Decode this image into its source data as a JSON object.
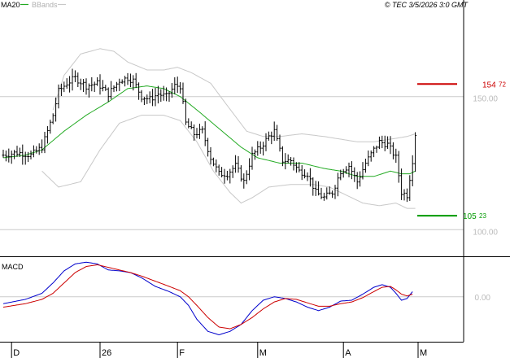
{
  "header": {
    "ma_label": "MA20",
    "bb_label": "BBands",
    "copyright": "© TEC 3/5/2026 3:0 GMT"
  },
  "colors": {
    "price": "#000000",
    "ma": "#22aa22",
    "bands": "#c8c8c8",
    "resistance": "#cc0000",
    "support": "#009900",
    "macd": "#0000cc",
    "signal": "#cc0000",
    "grid": "#cccccc",
    "frame": "#000000",
    "axis_text": "#bbbbbb"
  },
  "chart_data": [
    {
      "type": "ohlc",
      "yscale": "linear",
      "ylim": [
        90,
        182
      ],
      "x_index_range": [
        0,
        170
      ],
      "y_ticks": [
        {
          "value": 150,
          "label": "150.00"
        },
        {
          "value": 100,
          "label": "100.00"
        }
      ],
      "x_ticks": [
        {
          "i": 3,
          "label": "D"
        },
        {
          "i": 35,
          "label": "26"
        },
        {
          "i": 63,
          "label": "F"
        },
        {
          "i": 92,
          "label": "M"
        },
        {
          "i": 123,
          "label": "A"
        },
        {
          "i": 150,
          "label": "M"
        }
      ],
      "levels": [
        {
          "name": "resistance",
          "value": 154.72,
          "label_main": "154",
          "label_frac": "72"
        },
        {
          "name": "support",
          "value": 105.23,
          "label_main": "105",
          "label_frac": "23"
        }
      ],
      "close_anchors": [
        [
          0,
          128
        ],
        [
          5,
          129
        ],
        [
          10,
          128
        ],
        [
          14,
          131
        ],
        [
          18,
          143
        ],
        [
          20,
          152
        ],
        [
          23,
          155
        ],
        [
          26,
          157
        ],
        [
          30,
          154
        ],
        [
          34,
          155
        ],
        [
          38,
          151
        ],
        [
          42,
          156
        ],
        [
          45,
          157
        ],
        [
          47,
          156
        ],
        [
          50,
          150
        ],
        [
          53,
          149
        ],
        [
          56,
          151
        ],
        [
          59,
          150
        ],
        [
          62,
          154
        ],
        [
          64,
          154
        ],
        [
          66,
          140
        ],
        [
          69,
          136
        ],
        [
          72,
          137
        ],
        [
          75,
          127
        ],
        [
          78,
          121
        ],
        [
          81,
          121
        ],
        [
          84,
          124
        ],
        [
          87,
          118
        ],
        [
          90,
          128
        ],
        [
          93,
          131
        ],
        [
          96,
          135
        ],
        [
          98,
          137
        ],
        [
          101,
          126
        ],
        [
          104,
          126
        ],
        [
          107,
          122
        ],
        [
          110,
          121
        ],
        [
          113,
          114
        ],
        [
          116,
          112
        ],
        [
          119,
          114
        ],
        [
          122,
          122
        ],
        [
          125,
          124
        ],
        [
          128,
          118
        ],
        [
          131,
          125
        ],
        [
          134,
          130
        ],
        [
          136,
          133
        ],
        [
          139,
          132
        ],
        [
          142,
          127
        ],
        [
          144,
          114
        ],
        [
          146,
          113
        ],
        [
          148,
          126
        ],
        [
          149,
          136
        ]
      ],
      "ma20_anchors": [
        [
          0,
          127
        ],
        [
          8,
          128
        ],
        [
          14,
          130
        ],
        [
          22,
          137
        ],
        [
          30,
          143
        ],
        [
          38,
          148
        ],
        [
          45,
          153
        ],
        [
          52,
          154
        ],
        [
          58,
          153
        ],
        [
          64,
          150
        ],
        [
          70,
          145
        ],
        [
          78,
          138
        ],
        [
          86,
          131
        ],
        [
          92,
          127
        ],
        [
          100,
          125
        ],
        [
          108,
          125
        ],
        [
          116,
          123
        ],
        [
          122,
          122
        ],
        [
          128,
          120
        ],
        [
          134,
          120
        ],
        [
          140,
          122
        ],
        [
          144,
          121
        ],
        [
          147,
          121
        ],
        [
          149,
          122
        ]
      ],
      "upper_band_anchors": [
        [
          18,
          145
        ],
        [
          22,
          158
        ],
        [
          28,
          166
        ],
        [
          35,
          168
        ],
        [
          40,
          167
        ],
        [
          45,
          163
        ],
        [
          52,
          160
        ],
        [
          58,
          160
        ],
        [
          63,
          161
        ],
        [
          68,
          159
        ],
        [
          75,
          155
        ],
        [
          80,
          148
        ],
        [
          88,
          137
        ],
        [
          94,
          135
        ],
        [
          100,
          135
        ],
        [
          108,
          136
        ],
        [
          116,
          135
        ],
        [
          122,
          134
        ],
        [
          128,
          133
        ],
        [
          134,
          133
        ],
        [
          140,
          134
        ],
        [
          146,
          135
        ],
        [
          149,
          136
        ]
      ],
      "lower_band_anchors": [
        [
          14,
          122
        ],
        [
          20,
          116
        ],
        [
          28,
          118
        ],
        [
          35,
          130
        ],
        [
          42,
          140
        ],
        [
          50,
          143
        ],
        [
          58,
          143
        ],
        [
          64,
          141
        ],
        [
          70,
          133
        ],
        [
          76,
          122
        ],
        [
          82,
          114
        ],
        [
          86,
          110
        ],
        [
          90,
          112
        ],
        [
          96,
          116
        ],
        [
          104,
          117
        ],
        [
          112,
          117
        ],
        [
          118,
          116
        ],
        [
          124,
          113
        ],
        [
          130,
          110
        ],
        [
          136,
          109
        ],
        [
          142,
          110
        ],
        [
          146,
          108
        ],
        [
          149,
          108
        ]
      ]
    },
    {
      "type": "line",
      "title": "MACD",
      "ylim": [
        -2.6,
        2.2
      ],
      "y_ticks": [
        {
          "value": 0,
          "label": "0.00"
        }
      ],
      "series": [
        {
          "role": "macd",
          "anchors": [
            [
              0,
              -0.4
            ],
            [
              8,
              -0.15
            ],
            [
              14,
              0.2
            ],
            [
              18,
              0.8
            ],
            [
              22,
              1.5
            ],
            [
              26,
              1.9
            ],
            [
              30,
              2.0
            ],
            [
              34,
              1.9
            ],
            [
              38,
              1.55
            ],
            [
              42,
              1.5
            ],
            [
              46,
              1.4
            ],
            [
              50,
              1.1
            ],
            [
              55,
              0.6
            ],
            [
              60,
              0.3
            ],
            [
              64,
              0.0
            ],
            [
              67,
              -0.5
            ],
            [
              70,
              -1.3
            ],
            [
              74,
              -2.0
            ],
            [
              78,
              -2.2
            ],
            [
              82,
              -2.0
            ],
            [
              86,
              -1.6
            ],
            [
              90,
              -0.8
            ],
            [
              94,
              -0.2
            ],
            [
              98,
              0.0
            ],
            [
              102,
              -0.1
            ],
            [
              106,
              -0.3
            ],
            [
              110,
              -0.6
            ],
            [
              114,
              -0.8
            ],
            [
              118,
              -0.6
            ],
            [
              122,
              -0.25
            ],
            [
              126,
              -0.2
            ],
            [
              130,
              0.15
            ],
            [
              134,
              0.55
            ],
            [
              137,
              0.7
            ],
            [
              140,
              0.55
            ],
            [
              142,
              0.2
            ],
            [
              144,
              -0.2
            ],
            [
              146,
              -0.1
            ],
            [
              148,
              0.3
            ]
          ]
        },
        {
          "role": "signal",
          "anchors": [
            [
              0,
              -0.6
            ],
            [
              8,
              -0.4
            ],
            [
              14,
              -0.15
            ],
            [
              18,
              0.2
            ],
            [
              22,
              0.8
            ],
            [
              26,
              1.4
            ],
            [
              30,
              1.75
            ],
            [
              34,
              1.85
            ],
            [
              38,
              1.7
            ],
            [
              42,
              1.55
            ],
            [
              46,
              1.4
            ],
            [
              50,
              1.2
            ],
            [
              55,
              0.9
            ],
            [
              60,
              0.6
            ],
            [
              64,
              0.35
            ],
            [
              67,
              0.0
            ],
            [
              70,
              -0.5
            ],
            [
              74,
              -1.2
            ],
            [
              78,
              -1.75
            ],
            [
              82,
              -1.85
            ],
            [
              86,
              -1.6
            ],
            [
              90,
              -1.2
            ],
            [
              94,
              -0.7
            ],
            [
              98,
              -0.3
            ],
            [
              102,
              -0.1
            ],
            [
              106,
              -0.15
            ],
            [
              110,
              -0.35
            ],
            [
              114,
              -0.55
            ],
            [
              118,
              -0.55
            ],
            [
              122,
              -0.4
            ],
            [
              126,
              -0.3
            ],
            [
              130,
              -0.05
            ],
            [
              134,
              0.3
            ],
            [
              137,
              0.55
            ],
            [
              140,
              0.6
            ],
            [
              142,
              0.4
            ],
            [
              144,
              0.15
            ],
            [
              146,
              0.05
            ],
            [
              148,
              0.15
            ]
          ]
        }
      ]
    }
  ]
}
